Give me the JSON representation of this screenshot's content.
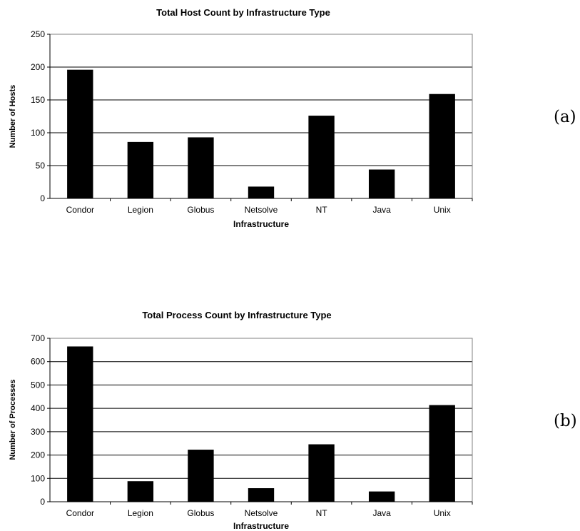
{
  "chart_data": [
    {
      "type": "bar",
      "panel_label": "(a)",
      "title": "Total Host Count by Infrastructure Type",
      "xlabel": "Infrastructure",
      "ylabel": "Number of Hosts",
      "categories": [
        "Condor",
        "Legion",
        "Globus",
        "Netsolve",
        "NT",
        "Java",
        "Unix"
      ],
      "values": [
        196,
        86,
        93,
        18,
        126,
        44,
        159
      ],
      "ylim": [
        0,
        250
      ],
      "yticks": [
        0,
        50,
        100,
        150,
        200,
        250
      ],
      "grid": true,
      "legend": "none",
      "bar_color": "#000000"
    },
    {
      "type": "bar",
      "panel_label": "(b)",
      "title": "Total Process Count by Infrastructure Type",
      "xlabel": "Infrastructure",
      "ylabel": "Number of Processes",
      "categories": [
        "Condor",
        "Legion",
        "Globus",
        "Netsolve",
        "NT",
        "Java",
        "Unix"
      ],
      "values": [
        665,
        88,
        223,
        58,
        246,
        44,
        414
      ],
      "ylim": [
        0,
        700
      ],
      "yticks": [
        0,
        100,
        200,
        300,
        400,
        500,
        600,
        700
      ],
      "grid": true,
      "legend": "none",
      "bar_color": "#000000"
    }
  ]
}
